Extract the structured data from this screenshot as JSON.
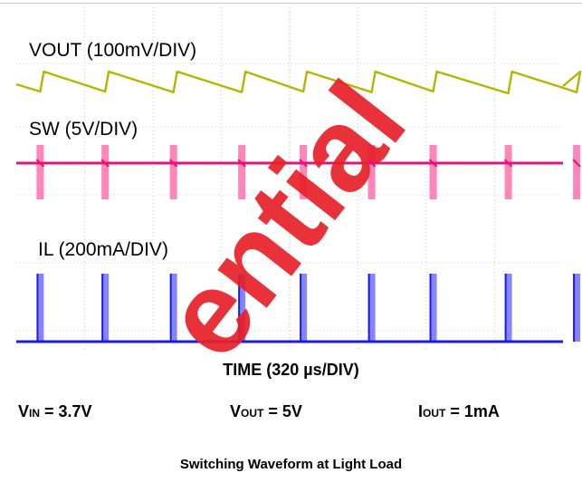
{
  "chart_data": {
    "type": "line",
    "title": "",
    "xlabel": "TIME (320 µs/DIV)",
    "series": [
      {
        "name": "VOUT (100mV/DIV)",
        "color": "#b5b500",
        "waveform": "sawtooth",
        "pulse_div": [
          0.35,
          1.3,
          2.3,
          3.3,
          4.2,
          5.2,
          6.1,
          7.2,
          8.2
        ]
      },
      {
        "name": "SW (5V/DIV)",
        "color": "#e0157a",
        "waveform": "switching-bursts",
        "burst_div": [
          0.35,
          1.3,
          2.3,
          3.3,
          4.2,
          5.2,
          6.1,
          7.2,
          8.2
        ]
      },
      {
        "name": "IL (200mA/DIV)",
        "color": "#1a1ae6",
        "waveform": "current-pulses",
        "pulse_div": [
          0.35,
          1.3,
          2.3,
          3.3,
          4.2,
          5.2,
          6.1,
          7.2,
          8.2
        ]
      }
    ],
    "divisions_x": 8,
    "grid": true
  },
  "labels": {
    "vout": "VOUT (100mV/DIV)",
    "sw": "SW (5V/DIV)",
    "il": "IL (200mA/DIV)",
    "time": "TIME (320 µs/DIV)"
  },
  "conditions": {
    "vin_main": "V",
    "vin_sub": "IN",
    "vin_value": " = 3.7V",
    "vout_main": "V",
    "vout_sub": "OUT",
    "vout_value": " = 5V",
    "iout_main": "I",
    "iout_sub": "OUT",
    "iout_value": " = 1mA"
  },
  "caption": "Switching Waveform at Light Load",
  "watermark": "ential",
  "colors": {
    "grid": "#d0d0d0",
    "vout": "#b5b500",
    "sw": "#e0157a",
    "sw_burst": "#ff78b4",
    "il": "#1a1ae6",
    "il_burst": "#7878ff",
    "watermark": "#e8202a"
  }
}
